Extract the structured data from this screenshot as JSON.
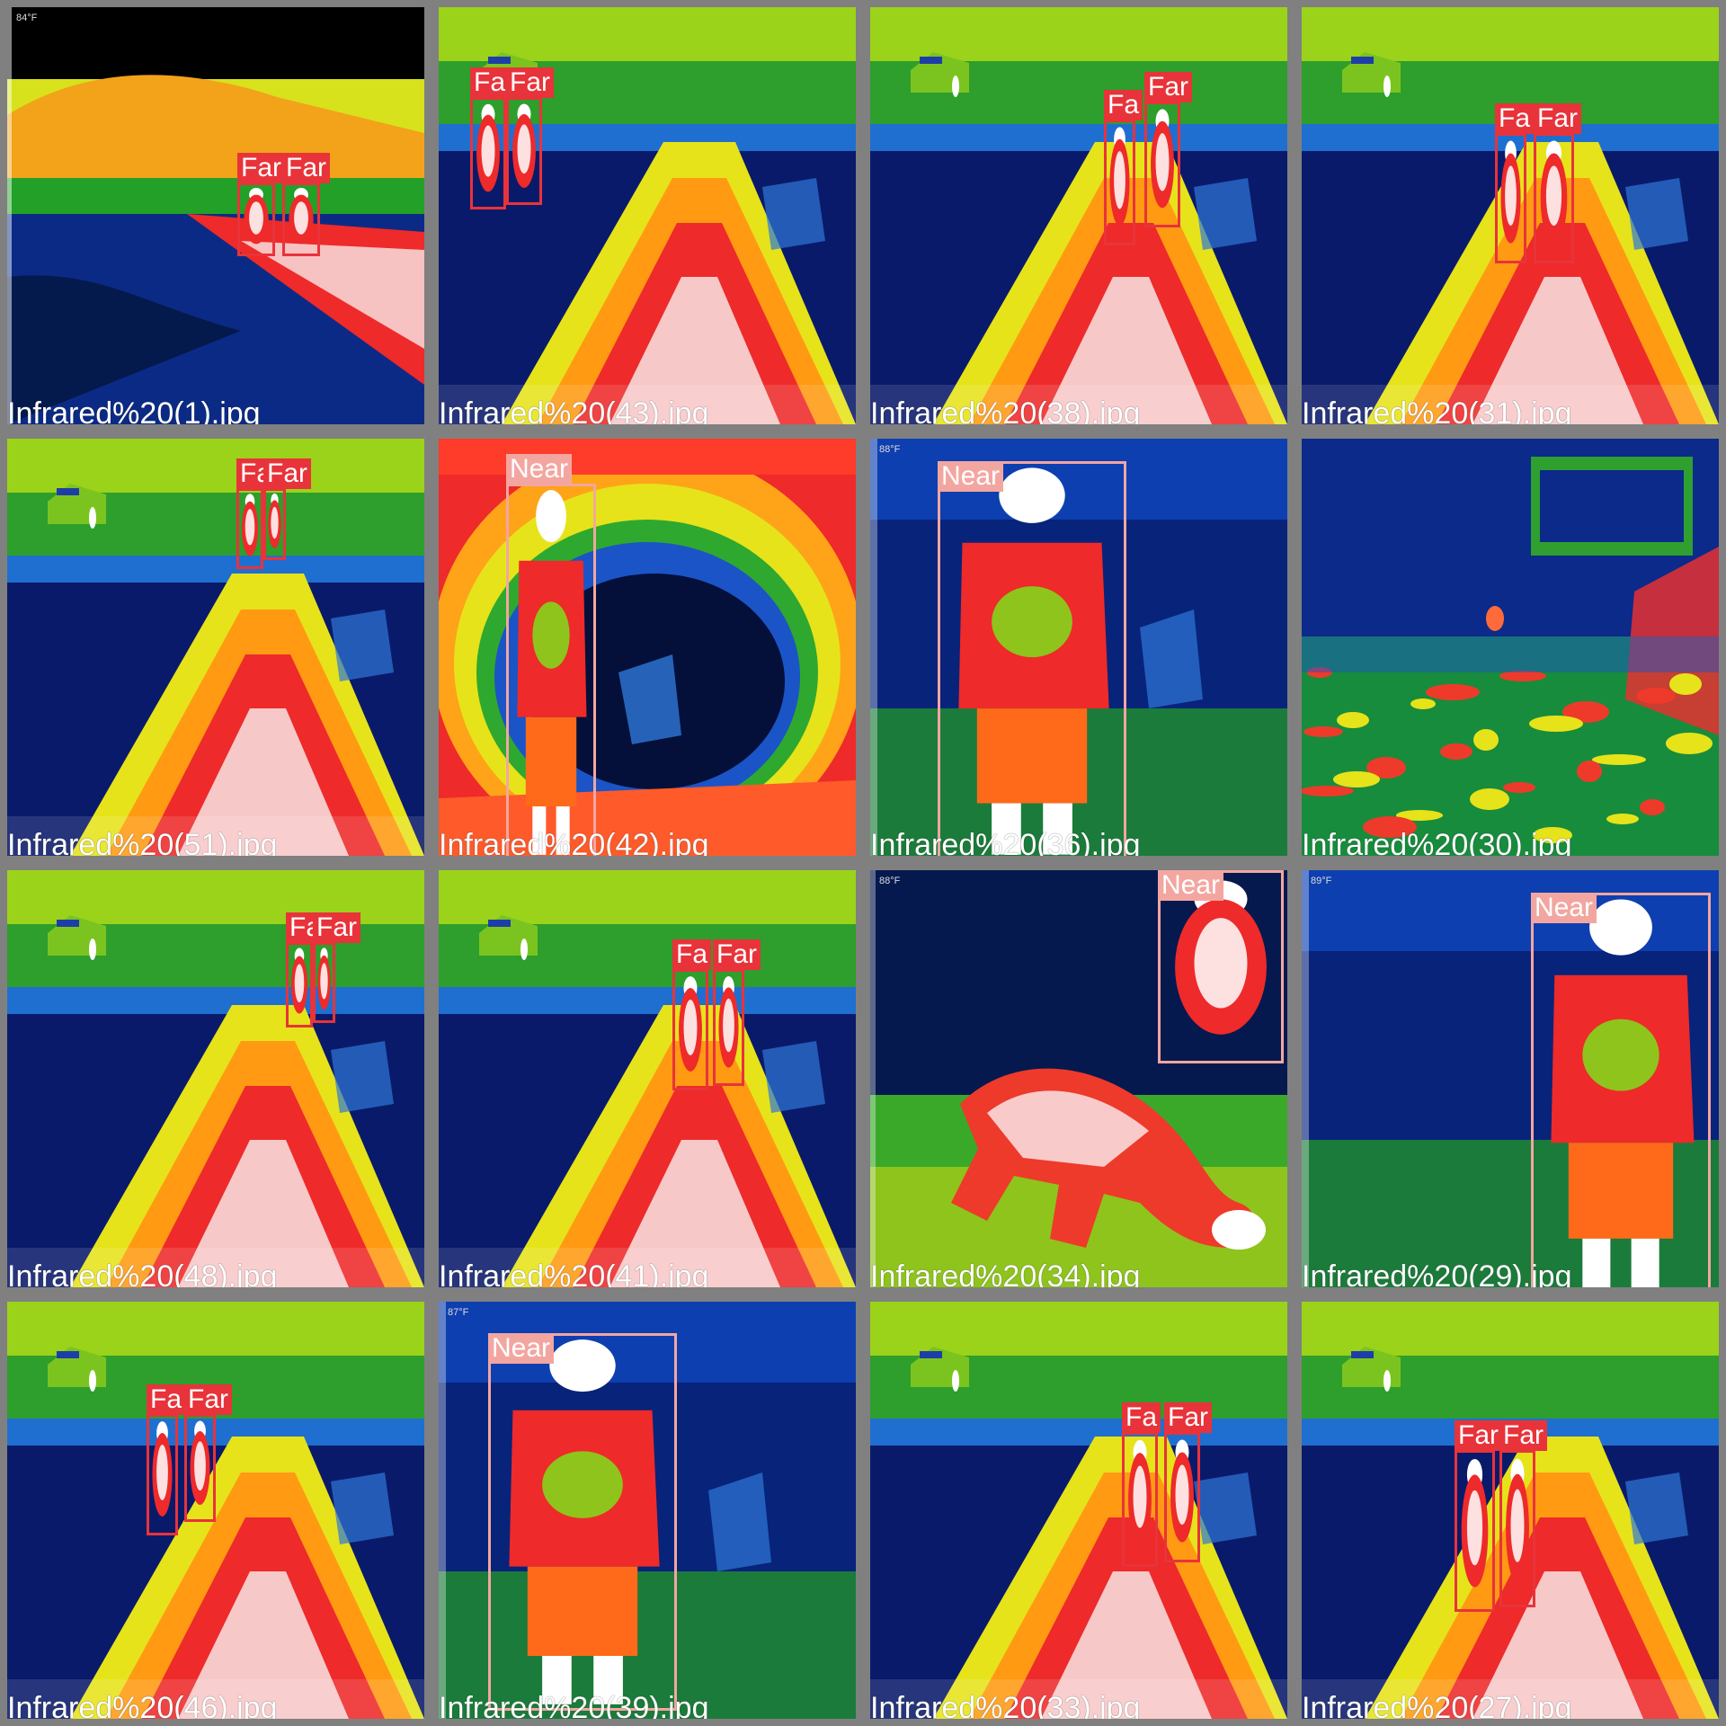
{
  "mosaic": {
    "classes": {
      "Far": {
        "label": "Far",
        "color": "#e8333a"
      },
      "Near": {
        "label": "Near",
        "color": "#f3a6a0"
      }
    },
    "tiles": [
      {
        "file": "Infrared%20(1).jpg",
        "temp_top": "84°F",
        "scene": "dusk",
        "detections": [
          {
            "cls": "Far",
            "label": "Far"
          },
          {
            "cls": "Far",
            "label": "Far"
          }
        ]
      },
      {
        "file": "Infrared%20(43).jpg",
        "scene": "path",
        "detections": [
          {
            "cls": "Far",
            "label": "Fa"
          },
          {
            "cls": "Far",
            "label": "Far"
          }
        ]
      },
      {
        "file": "Infrared%20(38).jpg",
        "scene": "path",
        "detections": [
          {
            "cls": "Far",
            "label": "Fa"
          },
          {
            "cls": "Far",
            "label": "Far"
          }
        ]
      },
      {
        "file": "Infrared%20(31).jpg",
        "scene": "path",
        "detections": [
          {
            "cls": "Far",
            "label": "Fa"
          },
          {
            "cls": "Far",
            "label": "Far"
          }
        ]
      },
      {
        "file": "Infrared%20(51).jpg",
        "scene": "path",
        "detections": [
          {
            "cls": "Far",
            "label": "Fa"
          },
          {
            "cls": "Far",
            "label": "Far"
          }
        ]
      },
      {
        "file": "Infrared%20(42).jpg",
        "scene": "hot",
        "detections": [
          {
            "cls": "Near",
            "label": "Near"
          }
        ]
      },
      {
        "file": "Infrared%20(36).jpg",
        "temp_top": "88°F",
        "scene": "person",
        "detections": [
          {
            "cls": "Near",
            "label": "Near"
          }
        ]
      },
      {
        "file": "Infrared%20(30).jpg",
        "scene": "cold",
        "detections": []
      },
      {
        "file": "Infrared%20(48).jpg",
        "scene": "path",
        "detections": [
          {
            "cls": "Far",
            "label": "Fa"
          },
          {
            "cls": "Far",
            "label": "Far"
          }
        ]
      },
      {
        "file": "Infrared%20(41).jpg",
        "scene": "path",
        "detections": [
          {
            "cls": "Far",
            "label": "Fa"
          },
          {
            "cls": "Far",
            "label": "Far"
          }
        ]
      },
      {
        "file": "Infrared%20(34).jpg",
        "temp_top": "88°F",
        "scene": "dog",
        "detections": [
          {
            "cls": "Near",
            "label": "Near"
          }
        ]
      },
      {
        "file": "Infrared%20(29).jpg",
        "temp_top": "89°F",
        "scene": "person",
        "detections": [
          {
            "cls": "Near",
            "label": "Near"
          }
        ]
      },
      {
        "file": "Infrared%20(46).jpg",
        "scene": "path",
        "detections": [
          {
            "cls": "Far",
            "label": "Fa"
          },
          {
            "cls": "Far",
            "label": "Far"
          }
        ]
      },
      {
        "file": "Infrared%20(39).jpg",
        "temp_top": "87°F",
        "scene": "person",
        "detections": [
          {
            "cls": "Near",
            "label": "Near"
          }
        ]
      },
      {
        "file": "Infrared%20(33).jpg",
        "scene": "path",
        "detections": [
          {
            "cls": "Far",
            "label": "Fa"
          },
          {
            "cls": "Far",
            "label": "Far"
          }
        ]
      },
      {
        "file": "Infrared%20(27).jpg",
        "scene": "path",
        "detections": [
          {
            "cls": "Far",
            "label": "Far"
          },
          {
            "cls": "Far",
            "label": "Far"
          }
        ]
      }
    ]
  }
}
